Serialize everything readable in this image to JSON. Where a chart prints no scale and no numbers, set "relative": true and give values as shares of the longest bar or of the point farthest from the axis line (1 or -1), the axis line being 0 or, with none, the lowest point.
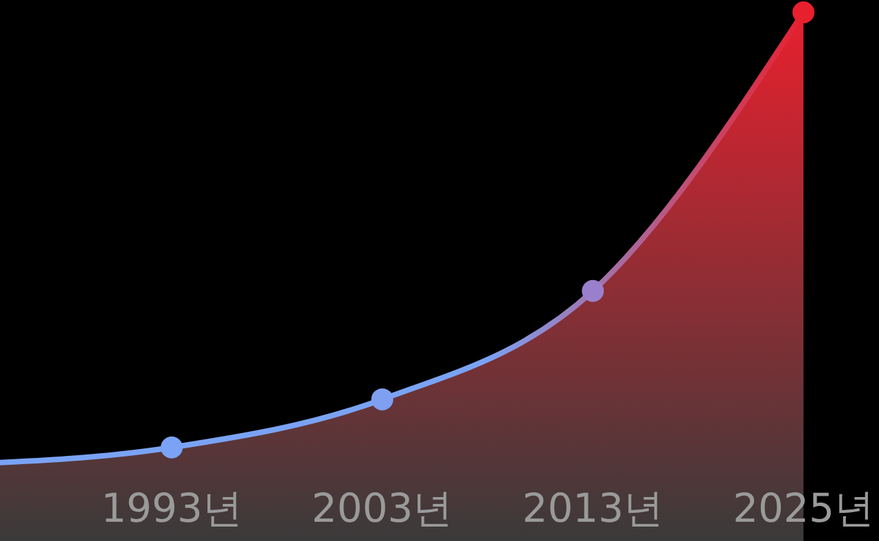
{
  "chart_data": {
    "type": "area",
    "relative": true,
    "categories": [
      null,
      "1993년",
      "2003년",
      "2013년",
      "2025년"
    ],
    "series": [
      {
        "color": "#e8202e",
        "colors": [
          null,
          "#7aa3f5",
          "#7f9ff0",
          "#9a80cc",
          "#e8202e"
        ],
        "values": [
          0.145,
          0.177,
          0.268,
          0.473,
          1
        ]
      }
    ],
    "marker": "circle"
  }
}
